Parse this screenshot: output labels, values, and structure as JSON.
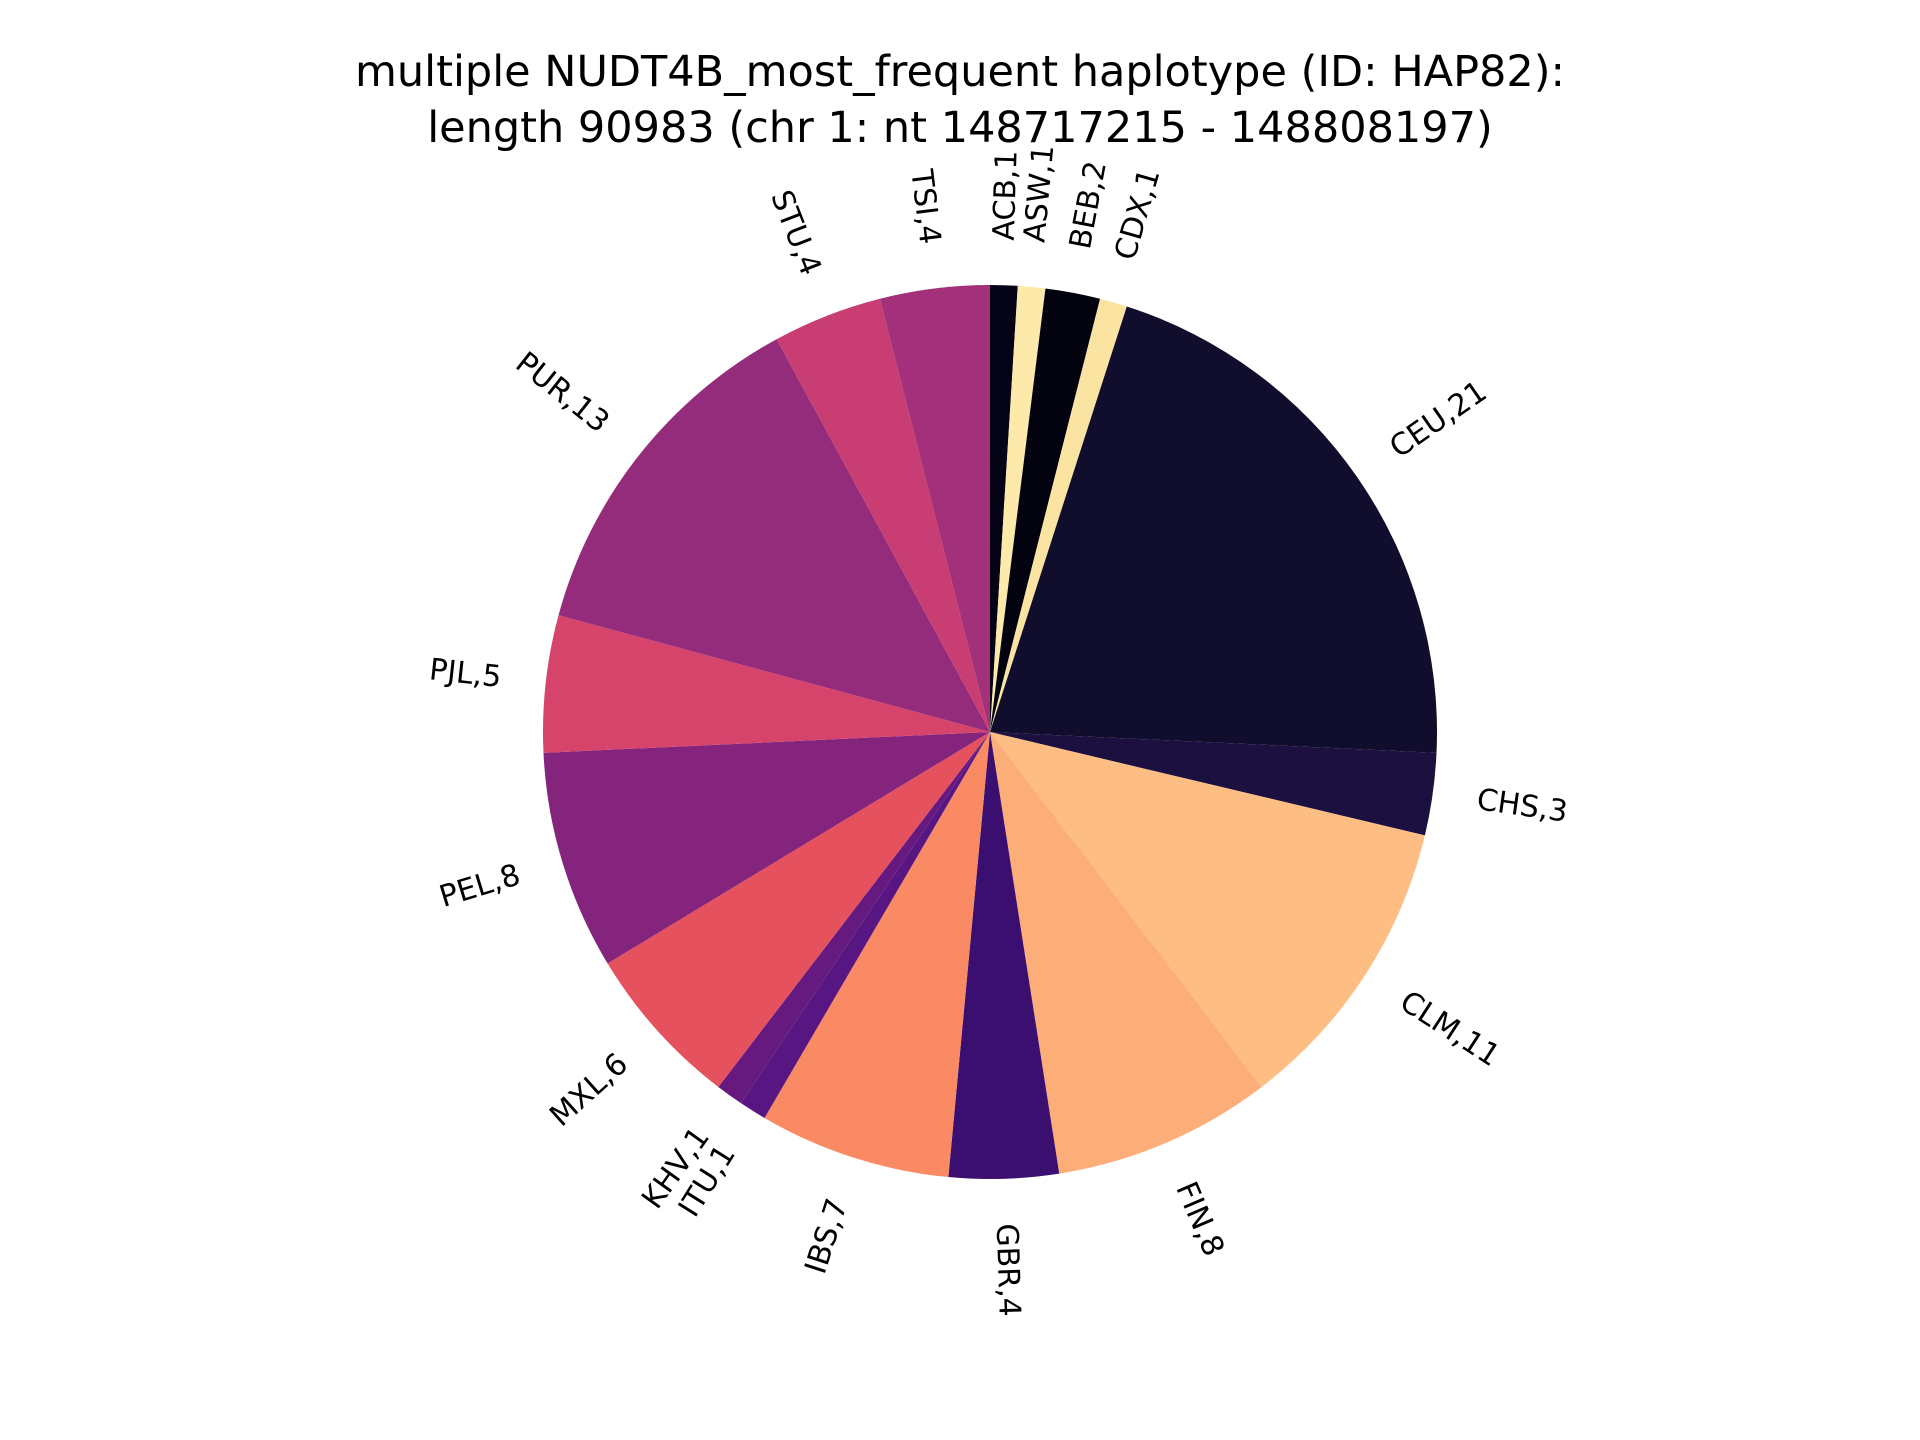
{
  "chart_data": {
    "type": "pie",
    "title": "multiple NUDT4B_most_frequent haplotype (ID: HAP82):",
    "subtitle": "length 90983 (chr 1: nt 148717215 - 148808197)",
    "start_angle_deg": 90,
    "direction": "clockwise",
    "label_format": "{label},{value}",
    "slices": [
      {
        "label": "ACB",
        "value": 1,
        "color": "#050416"
      },
      {
        "label": "ASW",
        "value": 1,
        "color": "#fde9a9"
      },
      {
        "label": "BEB",
        "value": 2,
        "color": "#03030f"
      },
      {
        "label": "CDX",
        "value": 1,
        "color": "#fbe4a2"
      },
      {
        "label": "CEU",
        "value": 21,
        "color": "#110d2c"
      },
      {
        "label": "CHS",
        "value": 3,
        "color": "#1c1040"
      },
      {
        "label": "CLM",
        "value": 11,
        "color": "#febd83"
      },
      {
        "label": "FIN",
        "value": 8,
        "color": "#fdad78"
      },
      {
        "label": "GBR",
        "value": 4,
        "color": "#3b0f70"
      },
      {
        "label": "IBS",
        "value": 7,
        "color": "#f98a63"
      },
      {
        "label": "ITU",
        "value": 1,
        "color": "#581683"
      },
      {
        "label": "KHV",
        "value": 1,
        "color": "#661a80"
      },
      {
        "label": "MXL",
        "value": 6,
        "color": "#e5525e"
      },
      {
        "label": "PEL",
        "value": 8,
        "color": "#84247c"
      },
      {
        "label": "PJL",
        "value": 5,
        "color": "#d6446c"
      },
      {
        "label": "PUR",
        "value": 13,
        "color": "#952c7b"
      },
      {
        "label": "STU",
        "value": 4,
        "color": "#c83d72"
      },
      {
        "label": "TSI",
        "value": 4,
        "color": "#a3307a"
      }
    ]
  }
}
